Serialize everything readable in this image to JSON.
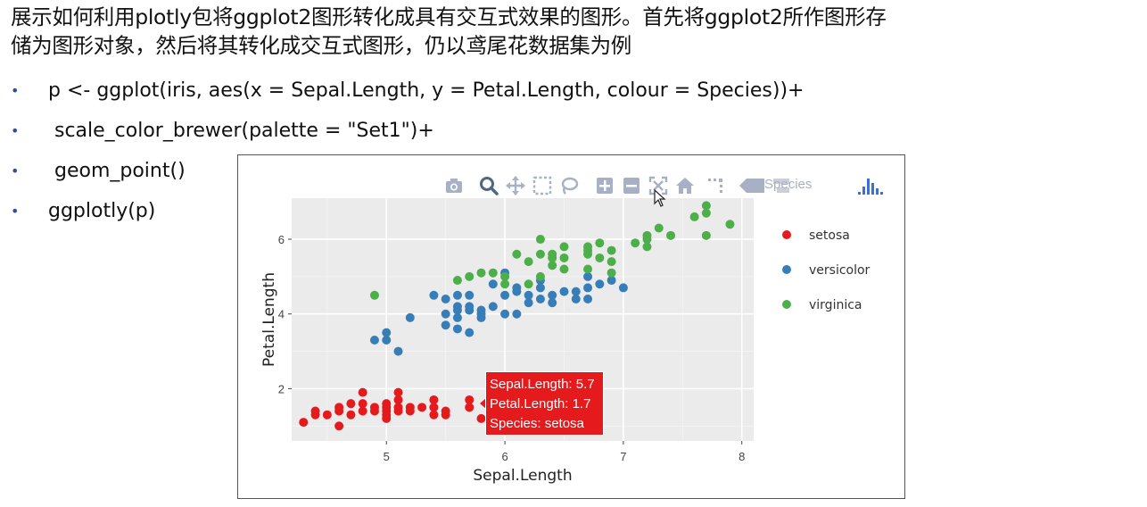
{
  "slide": {
    "title_lines": [
      "展示如何利用plotly包将ggplot2图形转化成具有交互式效果的图形。首先将ggplot2所作图形存",
      "储为图形对象，然后将其转化成交互式图形，仍以鸢尾花数据集为例"
    ],
    "bullets": [
      "p <- ggplot(iris, aes(x = Sepal.Length, y = Petal.Length, colour = Species))+",
      " scale_color_brewer(palette = \"Set1\")+",
      " geom_point()",
      "ggplotly(p)"
    ]
  },
  "modebar": {
    "icons": [
      "camera-icon",
      "zoom-icon",
      "pan-icon",
      "box-select-icon",
      "lasso-icon",
      "zoom-in-icon",
      "zoom-out-icon",
      "autoscale-icon",
      "reset-axes-icon",
      "spike-lines-icon",
      "hover-closest-icon",
      "hover-compare-icon",
      "plotly-logo-icon"
    ],
    "ghost_text": "Species"
  },
  "tooltip": {
    "lines": [
      "Sepal.Length: 5.7",
      "Petal.Length: 1.7",
      "Species: setosa"
    ]
  },
  "colors": {
    "setosa": "#e41a1c",
    "versicolor": "#377eb8",
    "virginica": "#4daf4a",
    "panel_bg": "#ebebeb",
    "modebar_icon": "#a7b0c4"
  },
  "chart_data": {
    "type": "scatter",
    "xlabel": "Sepal.Length",
    "ylabel": "Petal.Length",
    "xlim": [
      4.2,
      8.1
    ],
    "ylim": [
      0.6,
      7.1
    ],
    "xticks": [
      5,
      6,
      7,
      8
    ],
    "yticks": [
      2,
      4,
      6
    ],
    "grid": true,
    "legend_position": "right",
    "series": [
      {
        "name": "setosa",
        "points": [
          [
            4.3,
            1.1
          ],
          [
            4.4,
            1.3
          ],
          [
            4.4,
            1.4
          ],
          [
            4.5,
            1.3
          ],
          [
            4.6,
            1.0
          ],
          [
            4.6,
            1.4
          ],
          [
            4.6,
            1.5
          ],
          [
            4.7,
            1.3
          ],
          [
            4.7,
            1.6
          ],
          [
            4.8,
            1.4
          ],
          [
            4.8,
            1.6
          ],
          [
            4.8,
            1.9
          ],
          [
            4.9,
            1.4
          ],
          [
            4.9,
            1.5
          ],
          [
            5.0,
            1.2
          ],
          [
            5.0,
            1.3
          ],
          [
            5.0,
            1.4
          ],
          [
            5.0,
            1.5
          ],
          [
            5.0,
            1.6
          ],
          [
            5.1,
            1.4
          ],
          [
            5.1,
            1.5
          ],
          [
            5.1,
            1.7
          ],
          [
            5.1,
            1.9
          ],
          [
            5.2,
            1.4
          ],
          [
            5.2,
            1.5
          ],
          [
            5.3,
            1.5
          ],
          [
            5.4,
            1.3
          ],
          [
            5.4,
            1.5
          ],
          [
            5.4,
            1.7
          ],
          [
            5.5,
            1.3
          ],
          [
            5.5,
            1.4
          ],
          [
            5.7,
            1.5
          ],
          [
            5.7,
            1.7
          ],
          [
            5.8,
            1.2
          ]
        ]
      },
      {
        "name": "versicolor",
        "points": [
          [
            4.9,
            3.3
          ],
          [
            5.0,
            3.3
          ],
          [
            5.0,
            3.5
          ],
          [
            5.1,
            3.0
          ],
          [
            5.2,
            3.9
          ],
          [
            5.4,
            4.5
          ],
          [
            5.5,
            3.7
          ],
          [
            5.5,
            4.0
          ],
          [
            5.5,
            4.4
          ],
          [
            5.6,
            3.6
          ],
          [
            5.6,
            3.9
          ],
          [
            5.6,
            4.1
          ],
          [
            5.6,
            4.2
          ],
          [
            5.6,
            4.5
          ],
          [
            5.7,
            3.5
          ],
          [
            5.7,
            4.1
          ],
          [
            5.7,
            4.2
          ],
          [
            5.7,
            4.5
          ],
          [
            5.8,
            3.9
          ],
          [
            5.8,
            4.0
          ],
          [
            5.8,
            4.1
          ],
          [
            5.9,
            4.2
          ],
          [
            5.9,
            4.8
          ],
          [
            6.0,
            4.0
          ],
          [
            6.0,
            4.5
          ],
          [
            6.0,
            5.1
          ],
          [
            6.1,
            4.0
          ],
          [
            6.1,
            4.6
          ],
          [
            6.1,
            4.7
          ],
          [
            6.2,
            4.3
          ],
          [
            6.2,
            4.5
          ],
          [
            6.3,
            4.4
          ],
          [
            6.3,
            4.7
          ],
          [
            6.3,
            4.9
          ],
          [
            6.4,
            4.3
          ],
          [
            6.4,
            4.5
          ],
          [
            6.5,
            4.6
          ],
          [
            6.6,
            4.4
          ],
          [
            6.6,
            4.6
          ],
          [
            6.7,
            4.4
          ],
          [
            6.7,
            4.7
          ],
          [
            6.7,
            5.0
          ],
          [
            6.8,
            4.8
          ],
          [
            6.9,
            4.9
          ],
          [
            7.0,
            4.7
          ]
        ]
      },
      {
        "name": "virginica",
        "points": [
          [
            4.9,
            4.5
          ],
          [
            5.6,
            4.9
          ],
          [
            5.7,
            5.0
          ],
          [
            5.8,
            5.1
          ],
          [
            5.9,
            5.1
          ],
          [
            6.0,
            4.8
          ],
          [
            6.0,
            5.0
          ],
          [
            6.1,
            5.6
          ],
          [
            6.2,
            4.8
          ],
          [
            6.2,
            5.4
          ],
          [
            6.3,
            5.0
          ],
          [
            6.3,
            5.6
          ],
          [
            6.3,
            6.0
          ],
          [
            6.4,
            5.3
          ],
          [
            6.4,
            5.5
          ],
          [
            6.4,
            5.6
          ],
          [
            6.5,
            5.2
          ],
          [
            6.5,
            5.5
          ],
          [
            6.5,
            5.8
          ],
          [
            6.7,
            5.2
          ],
          [
            6.7,
            5.6
          ],
          [
            6.7,
            5.7
          ],
          [
            6.7,
            5.8
          ],
          [
            6.8,
            5.5
          ],
          [
            6.8,
            5.9
          ],
          [
            6.9,
            5.1
          ],
          [
            6.9,
            5.4
          ],
          [
            6.9,
            5.7
          ],
          [
            7.1,
            5.9
          ],
          [
            7.2,
            5.8
          ],
          [
            7.2,
            6.0
          ],
          [
            7.2,
            6.1
          ],
          [
            7.3,
            6.3
          ],
          [
            7.4,
            6.1
          ],
          [
            7.6,
            6.6
          ],
          [
            7.7,
            6.1
          ],
          [
            7.7,
            6.7
          ],
          [
            7.7,
            6.9
          ],
          [
            7.9,
            6.4
          ]
        ]
      }
    ],
    "highlight_point": [
      5.7,
      1.7
    ]
  }
}
